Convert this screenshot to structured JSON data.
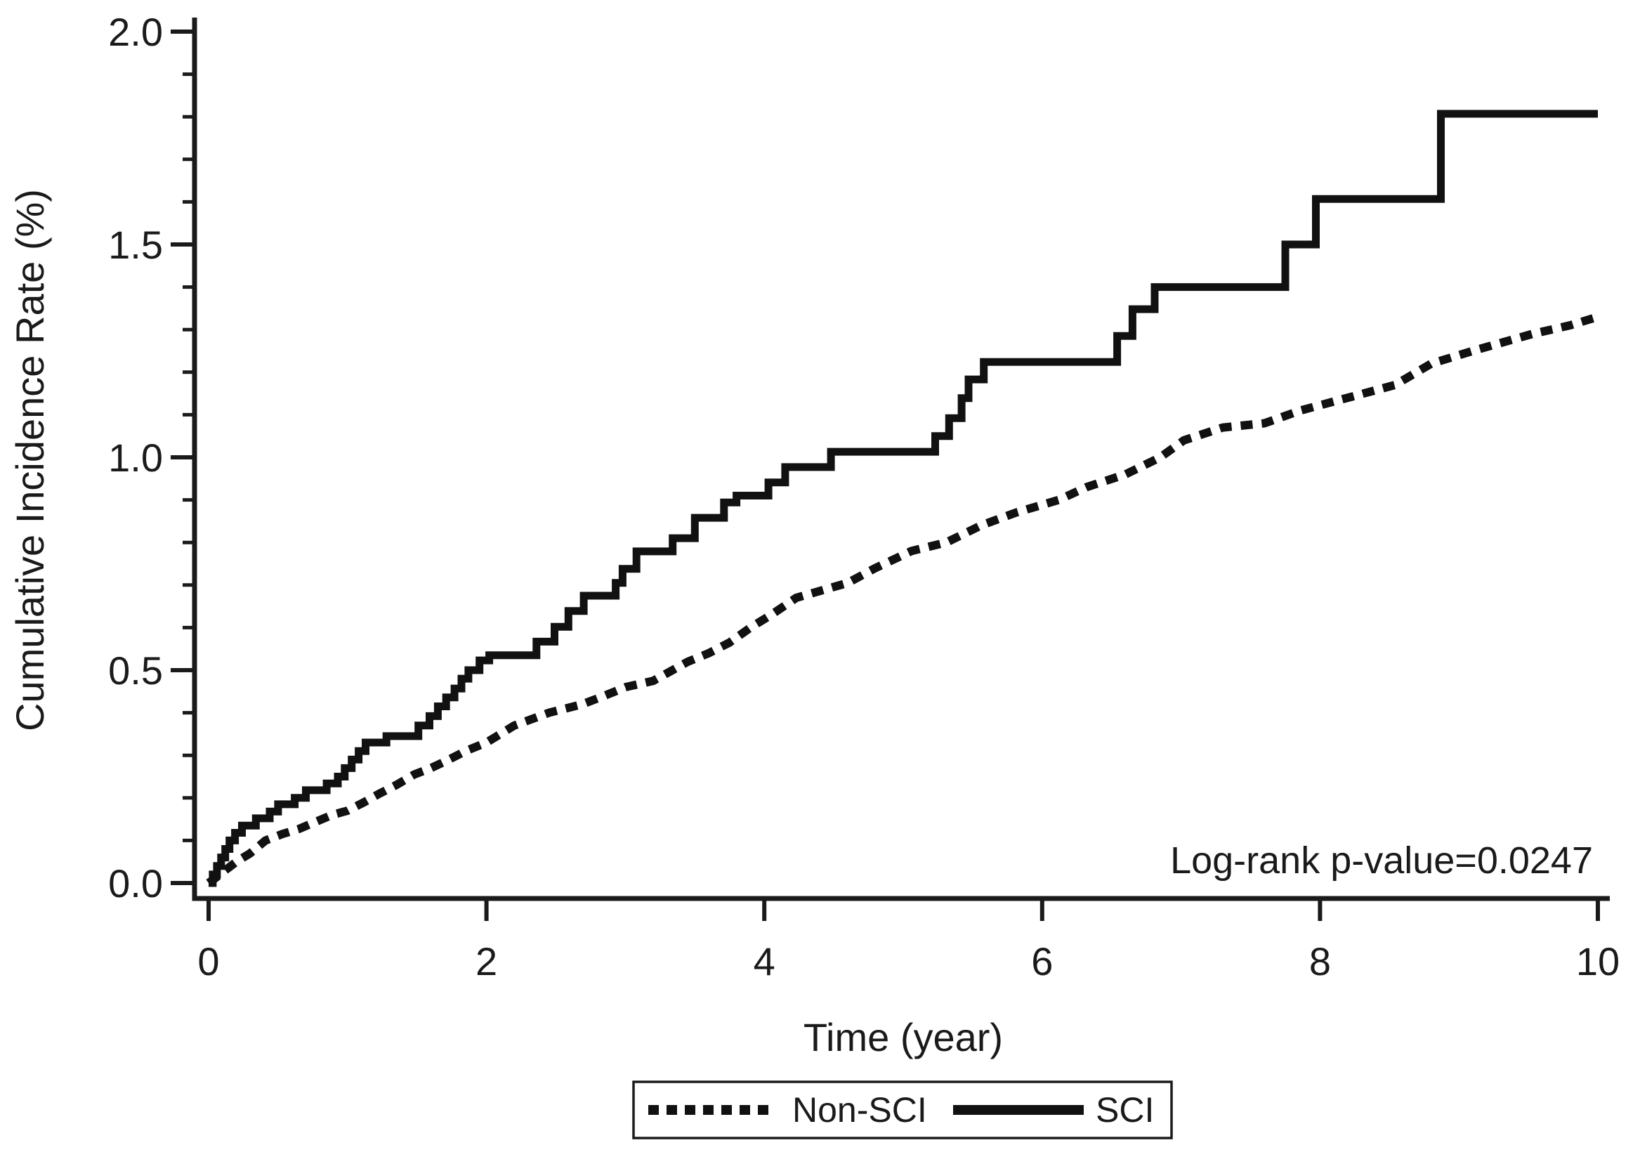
{
  "figure": {
    "background": "#ffffff",
    "axis_color": "#1a1a1a",
    "curve_color": "#111111"
  },
  "chart_data": {
    "type": "line",
    "title": "",
    "xlabel": "Time (year)",
    "ylabel": "Cumulative Incidence Rate (%)",
    "annotation": "Log-rank p-value=0.0247",
    "xlim": [
      0,
      10
    ],
    "ylim": [
      0.0,
      2.0
    ],
    "x_ticks": [
      0,
      2,
      4,
      6,
      8,
      10
    ],
    "y_ticks": [
      0.0,
      0.5,
      1.0,
      1.5,
      2.0
    ],
    "y_minor_tick_step": 0.1,
    "grid": false,
    "legend_position": "bottom-center",
    "series": [
      {
        "name": "Non-SCI",
        "style": "dashed",
        "step": false,
        "color": "#111111",
        "points": [
          [
            0,
            0
          ],
          [
            0.05,
            0.012
          ],
          [
            0.12,
            0.03
          ],
          [
            0.2,
            0.05
          ],
          [
            0.3,
            0.07
          ],
          [
            0.41,
            0.1
          ],
          [
            0.53,
            0.115
          ],
          [
            0.65,
            0.127
          ],
          [
            0.78,
            0.145
          ],
          [
            0.89,
            0.16
          ],
          [
            1.0,
            0.17
          ],
          [
            1.12,
            0.19
          ],
          [
            1.23,
            0.21
          ],
          [
            1.35,
            0.23
          ],
          [
            1.48,
            0.255
          ],
          [
            1.6,
            0.27
          ],
          [
            1.73,
            0.29
          ],
          [
            1.85,
            0.31
          ],
          [
            2.0,
            0.33
          ],
          [
            2.2,
            0.37
          ],
          [
            2.45,
            0.4
          ],
          [
            2.69,
            0.42
          ],
          [
            2.85,
            0.44
          ],
          [
            3.0,
            0.46
          ],
          [
            3.2,
            0.475
          ],
          [
            3.45,
            0.52
          ],
          [
            3.6,
            0.54
          ],
          [
            3.75,
            0.565
          ],
          [
            3.9,
            0.6
          ],
          [
            4.05,
            0.63
          ],
          [
            4.23,
            0.67
          ],
          [
            4.6,
            0.705
          ],
          [
            4.8,
            0.74
          ],
          [
            5.06,
            0.78
          ],
          [
            5.31,
            0.8
          ],
          [
            5.56,
            0.84
          ],
          [
            5.81,
            0.87
          ],
          [
            6.12,
            0.9
          ],
          [
            6.32,
            0.93
          ],
          [
            6.6,
            0.96
          ],
          [
            6.85,
            1.0
          ],
          [
            7.02,
            1.04
          ],
          [
            7.3,
            1.07
          ],
          [
            7.6,
            1.08
          ],
          [
            7.86,
            1.11
          ],
          [
            8.2,
            1.14
          ],
          [
            8.54,
            1.17
          ],
          [
            8.8,
            1.22
          ],
          [
            9.1,
            1.25
          ],
          [
            9.53,
            1.29
          ],
          [
            9.8,
            1.31
          ],
          [
            10,
            1.33
          ]
        ]
      },
      {
        "name": "SCI",
        "style": "solid",
        "step": true,
        "color": "#111111",
        "points": [
          [
            0,
            0
          ],
          [
            0.03,
            0.02
          ],
          [
            0.06,
            0.04
          ],
          [
            0.09,
            0.06
          ],
          [
            0.12,
            0.08
          ],
          [
            0.15,
            0.1
          ],
          [
            0.19,
            0.118
          ],
          [
            0.24,
            0.135
          ],
          [
            0.34,
            0.152
          ],
          [
            0.44,
            0.168
          ],
          [
            0.5,
            0.185
          ],
          [
            0.62,
            0.2
          ],
          [
            0.7,
            0.218
          ],
          [
            0.85,
            0.234
          ],
          [
            0.93,
            0.25
          ],
          [
            0.98,
            0.27
          ],
          [
            1.03,
            0.29
          ],
          [
            1.08,
            0.31
          ],
          [
            1.13,
            0.33
          ],
          [
            1.28,
            0.345
          ],
          [
            1.51,
            0.37
          ],
          [
            1.59,
            0.392
          ],
          [
            1.65,
            0.415
          ],
          [
            1.71,
            0.436
          ],
          [
            1.77,
            0.457
          ],
          [
            1.82,
            0.48
          ],
          [
            1.87,
            0.5
          ],
          [
            1.95,
            0.523
          ],
          [
            2.02,
            0.535
          ],
          [
            2.36,
            0.567
          ],
          [
            2.49,
            0.602
          ],
          [
            2.59,
            0.639
          ],
          [
            2.7,
            0.675
          ],
          [
            2.93,
            0.705
          ],
          [
            2.98,
            0.738
          ],
          [
            3.08,
            0.779
          ],
          [
            3.34,
            0.81
          ],
          [
            3.5,
            0.858
          ],
          [
            3.71,
            0.894
          ],
          [
            3.8,
            0.91
          ],
          [
            4.03,
            0.941
          ],
          [
            4.15,
            0.977
          ],
          [
            4.48,
            1.013
          ],
          [
            5.23,
            1.05
          ],
          [
            5.33,
            1.092
          ],
          [
            5.42,
            1.139
          ],
          [
            5.47,
            1.183
          ],
          [
            5.58,
            1.224
          ],
          [
            6.54,
            1.285
          ],
          [
            6.65,
            1.348
          ],
          [
            6.81,
            1.4
          ],
          [
            7.75,
            1.5
          ],
          [
            7.97,
            1.607
          ],
          [
            8.87,
            1.807
          ],
          [
            10,
            1.807
          ]
        ]
      }
    ]
  }
}
